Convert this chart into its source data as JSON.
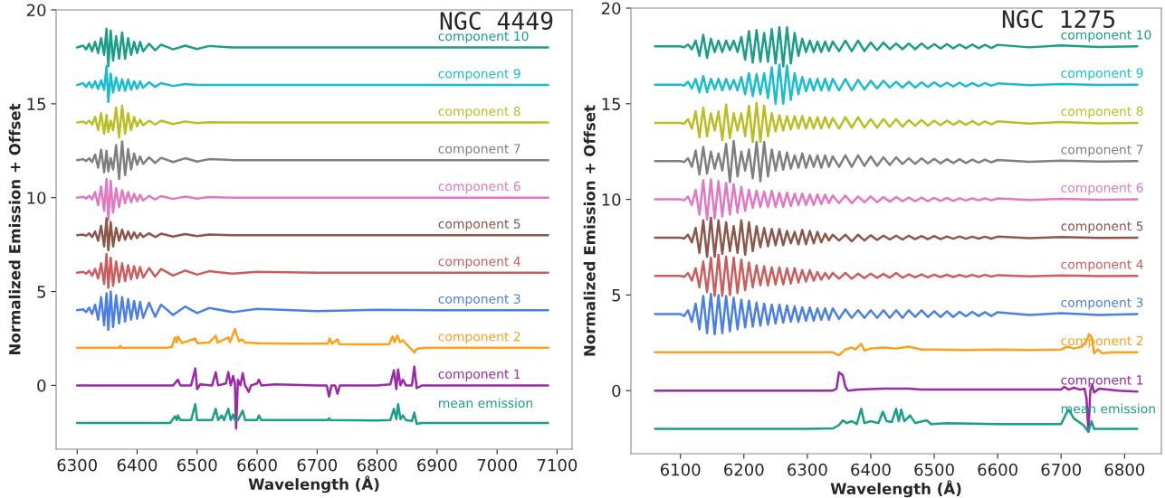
{
  "chart_data": [
    {
      "type": "line",
      "title": "NGC 4449",
      "xlabel": "Wavelength (Å)",
      "ylabel": "Normalized Emission + Offset",
      "xlim": [
        6265,
        7125
      ],
      "ylim": [
        -3.4,
        20
      ],
      "xticks": [
        6300,
        6400,
        6500,
        6600,
        6700,
        6800,
        6900,
        7000,
        7100
      ],
      "yticks": [
        0,
        5,
        10,
        15,
        20
      ],
      "x": [
        6300,
        6310,
        6315,
        6320,
        6325,
        6330,
        6335,
        6340,
        6345,
        6349,
        6352,
        6356,
        6360,
        6365,
        6370,
        6375,
        6380,
        6385,
        6390,
        6395,
        6400,
        6405,
        6410,
        6420,
        6430,
        6440,
        6460,
        6480,
        6500,
        6520,
        6560,
        6600,
        6700,
        6800,
        6900,
        7000,
        7085
      ],
      "series": [
        {
          "name": "component 10",
          "color": "#1a9e8a",
          "values": [
            18,
            18.1,
            17.9,
            18.2,
            17.8,
            18.3,
            17.7,
            18.5,
            17.6,
            19.0,
            17.0,
            18.9,
            17.3,
            18.6,
            17.4,
            18.8,
            17.4,
            18.5,
            17.6,
            18.3,
            17.7,
            18.3,
            17.8,
            18.2,
            17.85,
            18.15,
            17.9,
            18.1,
            17.92,
            18.08,
            18,
            18,
            18,
            18,
            18,
            18,
            18
          ]
        },
        {
          "name": "component 9",
          "color": "#17becf",
          "values": [
            16,
            16.1,
            15.9,
            16.15,
            15.85,
            16.2,
            15.8,
            16.25,
            15.75,
            17.0,
            15.1,
            16.6,
            15.6,
            16.4,
            15.7,
            16.3,
            15.7,
            16.3,
            15.75,
            16.2,
            15.8,
            16.2,
            15.85,
            16.15,
            15.9,
            16.1,
            15.95,
            16.05,
            16,
            16,
            16,
            16,
            16,
            16,
            16,
            16,
            16
          ]
        },
        {
          "name": "component 8",
          "color": "#bcbd22",
          "values": [
            14,
            14.05,
            13.95,
            14.1,
            13.9,
            14.3,
            13.6,
            14.5,
            13.4,
            14.4,
            13.5,
            14.1,
            13.6,
            14.8,
            13.2,
            14.9,
            13.4,
            14.5,
            13.6,
            14.3,
            13.8,
            14.15,
            13.85,
            14.1,
            13.9,
            14.1,
            13.92,
            14.06,
            13.97,
            14.02,
            14,
            14,
            14,
            14,
            14,
            14,
            14
          ]
        },
        {
          "name": "component 7",
          "color": "#7f7f7f",
          "values": [
            12,
            12.05,
            11.95,
            12.1,
            11.9,
            12.3,
            11.6,
            12.55,
            11.35,
            12.5,
            11.4,
            12.1,
            11.5,
            12.8,
            11.0,
            13.0,
            11.2,
            12.6,
            11.5,
            12.35,
            11.75,
            12.2,
            11.8,
            12.15,
            11.85,
            12.12,
            11.9,
            12.1,
            11.92,
            12.05,
            12,
            12,
            12,
            12,
            12,
            12,
            12
          ]
        },
        {
          "name": "component 6",
          "color": "#e377c2",
          "values": [
            10,
            10.05,
            9.95,
            10.1,
            9.9,
            10.3,
            9.6,
            10.6,
            9.3,
            11.0,
            8.8,
            10.9,
            9.2,
            10.5,
            9.5,
            10.4,
            9.7,
            10.3,
            9.75,
            10.2,
            9.8,
            10.15,
            9.85,
            10.1,
            9.9,
            10.08,
            9.93,
            10.06,
            9.95,
            10.03,
            10,
            10,
            10,
            10,
            10,
            10,
            10
          ]
        },
        {
          "name": "component 5",
          "color": "#8c564b",
          "values": [
            8,
            8.03,
            7.97,
            8.1,
            7.9,
            8.2,
            7.7,
            8.5,
            7.4,
            8.9,
            7.2,
            8.7,
            7.4,
            8.4,
            7.7,
            8.3,
            7.75,
            8.2,
            7.8,
            8.15,
            7.85,
            8.1,
            7.9,
            8.1,
            7.9,
            8.08,
            7.93,
            8.06,
            7.95,
            8.03,
            8,
            8,
            8,
            8,
            8,
            8,
            8
          ]
        },
        {
          "name": "component 4",
          "color": "#cd5c5c",
          "values": [
            6,
            6.05,
            5.95,
            6.1,
            5.85,
            6.2,
            5.7,
            6.5,
            5.4,
            7.0,
            5.2,
            6.8,
            5.3,
            6.6,
            5.5,
            6.5,
            5.55,
            6.4,
            5.65,
            6.35,
            5.7,
            6.3,
            5.75,
            6.25,
            5.8,
            6.2,
            5.85,
            6.12,
            5.9,
            6.08,
            5.95,
            6.05,
            6,
            6,
            6,
            6,
            6
          ]
        },
        {
          "name": "component 3",
          "color": "#4a7fe8",
          "values": [
            4,
            4.05,
            3.9,
            4.15,
            3.8,
            4.3,
            3.5,
            4.7,
            3.2,
            4.9,
            2.95,
            5.0,
            3.1,
            4.8,
            3.3,
            4.7,
            3.4,
            4.6,
            3.5,
            4.5,
            3.55,
            4.45,
            3.6,
            4.4,
            3.65,
            4.3,
            3.75,
            4.2,
            3.85,
            4.12,
            3.9,
            4.08,
            3.95,
            4.03,
            4,
            4,
            4
          ]
        },
        {
          "name": "component 2",
          "color": "#ffa01c",
          "x": [
            6300,
            6370,
            6372,
            6374,
            6450,
            6458,
            6463,
            6466,
            6468,
            6475,
            6497,
            6500,
            6520,
            6531,
            6534,
            6552,
            6555,
            6563,
            6566,
            6570,
            6575,
            6580,
            6600,
            6650,
            6700,
            6718,
            6721,
            6725,
            6734,
            6737,
            6780,
            6820,
            6826,
            6829,
            6834,
            6838,
            6843,
            6850,
            6858,
            6862,
            6866,
            6880,
            6950,
            7085
          ],
          "values": [
            2.0,
            2.0,
            2.1,
            2.0,
            2.0,
            2.05,
            2.55,
            2.3,
            2.6,
            2.25,
            2.5,
            2.25,
            2.28,
            2.65,
            2.28,
            2.55,
            2.3,
            3.0,
            2.7,
            2.35,
            2.45,
            2.28,
            2.25,
            2.22,
            2.22,
            2.22,
            2.5,
            2.22,
            2.45,
            2.2,
            2.18,
            2.2,
            2.6,
            2.3,
            2.65,
            2.3,
            2.4,
            2.15,
            1.9,
            1.75,
            1.95,
            2.0,
            2.0,
            2.0
          ]
        },
        {
          "name": "component 1",
          "color": "#9b27a9",
          "x": [
            6300,
            6460,
            6468,
            6472,
            6490,
            6497,
            6500,
            6505,
            6525,
            6531,
            6535,
            6548,
            6552,
            6556,
            6560,
            6563,
            6565,
            6568,
            6572,
            6576,
            6580,
            6586,
            6590,
            6600,
            6603,
            6607,
            6630,
            6700,
            6716,
            6720,
            6724,
            6730,
            6734,
            6738,
            6800,
            6822,
            6828,
            6832,
            6835,
            6839,
            6843,
            6848,
            6858,
            6862,
            6866,
            6875,
            6950,
            7085
          ],
          "values": [
            0,
            0,
            0.3,
            0,
            0,
            0.9,
            -0.2,
            0.05,
            0,
            0.7,
            0,
            0.1,
            0.7,
            0,
            0.5,
            0.1,
            -2.3,
            0.3,
            0,
            0.65,
            0,
            -0.35,
            0,
            0.1,
            0.3,
            0,
            0.05,
            0,
            0,
            -0.6,
            0,
            0,
            -0.45,
            0,
            0,
            0.05,
            0.8,
            -0.2,
            0.85,
            0,
            0.3,
            0,
            0,
            1.0,
            -0.15,
            0,
            0,
            0
          ]
        },
        {
          "name": "mean emission",
          "color": "#1a9e8a",
          "x": [
            6300,
            6455,
            6463,
            6466,
            6468,
            6472,
            6490,
            6497,
            6500,
            6525,
            6531,
            6535,
            6541,
            6545,
            6552,
            6556,
            6560,
            6563,
            6565,
            6568,
            6576,
            6580,
            6600,
            6603,
            6607,
            6650,
            6718,
            6720,
            6722,
            6800,
            6822,
            6828,
            6832,
            6835,
            6839,
            6843,
            6848,
            6858,
            6862,
            6866,
            6875,
            6950,
            7085
          ],
          "values": [
            -2,
            -2,
            -1.65,
            -1.85,
            -1.6,
            -1.85,
            -1.85,
            -1.0,
            -1.85,
            -1.85,
            -1.25,
            -1.85,
            -1.6,
            -1.85,
            -1.25,
            -1.85,
            -1.55,
            -1.85,
            -1.85,
            -1.85,
            -1.35,
            -1.85,
            -1.85,
            -1.6,
            -1.85,
            -1.85,
            -1.85,
            -1.75,
            -1.85,
            -1.87,
            -1.85,
            -1.25,
            -1.8,
            -1.0,
            -1.8,
            -1.6,
            -1.85,
            -1.9,
            -1.45,
            -2.05,
            -2.0,
            -2.0,
            -2.0
          ]
        }
      ]
    },
    {
      "type": "line",
      "title": "NGC 1275",
      "xlabel": "Wavelength (Å)",
      "ylabel": "Normalized Emission + Offset",
      "xlim": [
        6022,
        6858
      ],
      "ylim": [
        -3.3,
        20
      ],
      "xticks": [
        6100,
        6200,
        6300,
        6400,
        6500,
        6600,
        6700,
        6800
      ],
      "yticks": [
        0,
        5,
        10,
        15,
        20
      ],
      "x": [
        6060,
        6100,
        6106,
        6112,
        6118,
        6124,
        6130,
        6136,
        6142,
        6148,
        6154,
        6160,
        6166,
        6172,
        6178,
        6184,
        6190,
        6196,
        6202,
        6208,
        6214,
        6220,
        6226,
        6232,
        6238,
        6244,
        6250,
        6256,
        6262,
        6268,
        6274,
        6280,
        6286,
        6292,
        6298,
        6304,
        6310,
        6316,
        6322,
        6328,
        6334,
        6340,
        6350,
        6360,
        6370,
        6380,
        6390,
        6400,
        6410,
        6420,
        6430,
        6440,
        6450,
        6460,
        6470,
        6480,
        6490,
        6500,
        6510,
        6520,
        6530,
        6540,
        6550,
        6560,
        6570,
        6580,
        6590,
        6600,
        6650,
        6700,
        6760,
        6820
      ],
      "series": [
        {
          "name": "component 10",
          "color": "#1a9e8a",
          "values": [
            18,
            18,
            17.95,
            18.1,
            17.85,
            18.3,
            17.5,
            18.6,
            17.4,
            18.4,
            17.7,
            18.3,
            17.7,
            18.3,
            17.8,
            18.3,
            17.7,
            18.5,
            17.3,
            18.8,
            17.15,
            18.85,
            17.2,
            18.7,
            17.2,
            18.9,
            17.1,
            19.0,
            16.95,
            19.0,
            17.1,
            18.7,
            17.5,
            18.4,
            17.7,
            18.3,
            17.7,
            18.25,
            17.7,
            18.25,
            17.75,
            18.25,
            17.75,
            18.3,
            17.75,
            18.3,
            17.75,
            18.2,
            17.8,
            18.2,
            17.85,
            18.15,
            17.85,
            18.15,
            17.85,
            18.15,
            17.88,
            18.12,
            17.88,
            18.12,
            17.9,
            18.1,
            17.9,
            18.1,
            17.9,
            18.08,
            17.92,
            18.08,
            17.95,
            18.05,
            17.97,
            18.0
          ]
        },
        {
          "name": "component 9",
          "color": "#17becf",
          "values": [
            16,
            16,
            15.95,
            16.15,
            15.8,
            16.3,
            15.6,
            16.45,
            15.6,
            16.3,
            15.75,
            16.3,
            15.7,
            16.3,
            15.75,
            16.25,
            15.7,
            16.4,
            15.5,
            16.6,
            15.4,
            16.55,
            15.5,
            16.6,
            15.3,
            16.9,
            15.0,
            17.05,
            15.0,
            17.0,
            15.2,
            16.6,
            15.5,
            16.4,
            15.65,
            16.3,
            15.7,
            16.3,
            15.7,
            16.3,
            15.7,
            16.3,
            15.7,
            16.3,
            15.7,
            16.25,
            15.75,
            16.2,
            15.8,
            16.2,
            15.85,
            16.15,
            15.85,
            16.15,
            15.85,
            16.12,
            15.88,
            16.12,
            15.9,
            16.1,
            15.9,
            16.1,
            15.9,
            16.08,
            15.92,
            16.08,
            15.94,
            16.06,
            15.97,
            16.03,
            15.98,
            16.0
          ]
        },
        {
          "name": "component 8",
          "color": "#bcbd22",
          "values": [
            14,
            14,
            13.95,
            14.2,
            13.7,
            14.6,
            13.25,
            14.8,
            13.3,
            14.5,
            13.6,
            14.6,
            13.1,
            14.95,
            13.2,
            14.5,
            13.6,
            14.5,
            13.3,
            14.9,
            13.0,
            15.05,
            13.0,
            14.9,
            13.3,
            14.5,
            13.55,
            14.4,
            13.6,
            14.35,
            13.65,
            14.35,
            13.7,
            14.35,
            13.7,
            14.3,
            13.7,
            14.3,
            13.7,
            14.3,
            13.75,
            14.25,
            13.7,
            14.3,
            13.75,
            14.3,
            13.75,
            14.2,
            13.75,
            14.2,
            13.8,
            14.2,
            13.8,
            14.15,
            13.85,
            14.15,
            13.85,
            14.12,
            13.88,
            14.12,
            13.9,
            14.1,
            13.9,
            14.1,
            13.9,
            14.08,
            13.92,
            14.08,
            13.96,
            14.04,
            13.98,
            14.0
          ]
        },
        {
          "name": "component 7",
          "color": "#7f7f7f",
          "values": [
            12,
            12,
            11.95,
            12.15,
            11.7,
            12.55,
            11.3,
            12.75,
            11.35,
            12.5,
            11.6,
            12.4,
            11.5,
            12.9,
            10.9,
            13.05,
            11.2,
            12.5,
            11.5,
            12.6,
            11.1,
            13.0,
            10.95,
            13.0,
            11.2,
            12.6,
            11.5,
            12.5,
            11.55,
            12.45,
            11.6,
            12.3,
            11.65,
            12.4,
            11.65,
            12.3,
            11.7,
            12.3,
            11.65,
            12.3,
            11.7,
            12.25,
            11.7,
            12.3,
            11.7,
            12.3,
            11.75,
            12.25,
            11.75,
            12.2,
            11.8,
            12.2,
            11.85,
            12.15,
            11.85,
            12.15,
            11.88,
            12.12,
            11.88,
            12.1,
            11.9,
            12.1,
            11.9,
            12.08,
            11.92,
            12.08,
            11.94,
            12.06,
            11.97,
            12.03,
            11.98,
            12.0
          ]
        },
        {
          "name": "component 6",
          "color": "#e377c2",
          "values": [
            10,
            10,
            9.95,
            10.15,
            9.7,
            10.5,
            9.2,
            11.0,
            8.95,
            11.05,
            9.0,
            10.95,
            9.1,
            10.85,
            9.2,
            10.8,
            9.3,
            10.65,
            9.4,
            10.5,
            9.55,
            10.45,
            9.6,
            10.4,
            9.6,
            10.45,
            9.6,
            10.35,
            9.6,
            10.35,
            9.65,
            10.3,
            9.7,
            10.3,
            9.7,
            10.25,
            9.7,
            10.25,
            9.75,
            10.25,
            9.8,
            10.2,
            9.8,
            10.2,
            9.8,
            10.15,
            9.85,
            10.15,
            9.85,
            10.12,
            9.88,
            10.12,
            9.9,
            10.1,
            9.9,
            10.1,
            9.9,
            10.08,
            9.92,
            10.08,
            9.92,
            10.06,
            9.94,
            10.06,
            9.95,
            10.05,
            9.95,
            10.05,
            9.97,
            10.03,
            9.98,
            10.0
          ]
        },
        {
          "name": "component 5",
          "color": "#8c564b",
          "values": [
            8,
            8,
            7.95,
            8.15,
            7.75,
            8.5,
            7.2,
            8.9,
            7.0,
            9.05,
            7.0,
            8.9,
            7.15,
            8.8,
            7.3,
            8.6,
            7.2,
            8.9,
            7.1,
            8.8,
            7.3,
            8.6,
            7.5,
            8.5,
            7.55,
            8.45,
            7.6,
            8.45,
            7.6,
            8.35,
            7.7,
            8.3,
            7.65,
            8.4,
            7.65,
            8.35,
            7.7,
            8.3,
            7.75,
            8.2,
            7.85,
            8.15,
            7.85,
            8.15,
            7.8,
            8.15,
            7.85,
            8.12,
            7.88,
            8.1,
            7.9,
            8.1,
            7.9,
            8.1,
            7.92,
            8.08,
            7.92,
            8.08,
            7.92,
            8.06,
            7.94,
            8.06,
            7.94,
            8.05,
            7.95,
            8.05,
            7.95,
            8.05,
            7.97,
            8.03,
            7.98,
            8.0
          ]
        },
        {
          "name": "component 4",
          "color": "#cd5c5c",
          "values": [
            6,
            6,
            5.95,
            6.15,
            5.75,
            6.4,
            5.4,
            6.75,
            5.15,
            6.95,
            4.95,
            7.1,
            4.95,
            7.0,
            5.0,
            6.95,
            5.1,
            6.85,
            5.25,
            6.7,
            5.4,
            6.55,
            5.5,
            6.5,
            5.5,
            6.45,
            5.55,
            6.45,
            5.55,
            6.4,
            5.6,
            6.4,
            5.65,
            6.3,
            5.7,
            6.3,
            5.75,
            6.2,
            5.8,
            6.15,
            5.85,
            6.15,
            5.85,
            6.15,
            5.85,
            6.12,
            5.88,
            6.12,
            5.9,
            6.1,
            5.9,
            6.15,
            5.9,
            6.08,
            5.92,
            6.08,
            5.92,
            6.06,
            5.94,
            6.06,
            5.94,
            6.05,
            5.95,
            6.05,
            5.95,
            6.05,
            5.96,
            6.04,
            5.98,
            6.02,
            5.99,
            6.0
          ]
        },
        {
          "name": "component 3",
          "color": "#4a7fe8",
          "values": [
            4,
            4,
            3.9,
            4.2,
            3.6,
            4.55,
            3.2,
            4.95,
            3.0,
            5.05,
            2.95,
            5.0,
            3.0,
            4.95,
            3.1,
            4.85,
            3.2,
            4.75,
            3.3,
            4.7,
            3.35,
            4.6,
            3.4,
            4.55,
            3.45,
            4.5,
            3.5,
            4.5,
            3.55,
            4.45,
            3.6,
            4.4,
            3.6,
            4.35,
            3.65,
            4.35,
            3.65,
            4.3,
            3.7,
            4.3,
            3.7,
            4.3,
            3.75,
            4.25,
            3.8,
            4.2,
            3.8,
            4.2,
            3.8,
            4.2,
            3.8,
            4.2,
            3.8,
            4.2,
            3.85,
            4.2,
            3.85,
            4.15,
            3.85,
            4.15,
            3.85,
            4.12,
            3.88,
            4.12,
            3.9,
            4.1,
            3.9,
            4.1,
            3.95,
            4.05,
            3.95,
            4.0
          ]
        },
        {
          "name": "component 2",
          "color": "#ffa01c",
          "x": [
            6060,
            6200,
            6340,
            6350,
            6360,
            6370,
            6376,
            6385,
            6390,
            6400,
            6420,
            6440,
            6460,
            6480,
            6500,
            6550,
            6600,
            6650,
            6700,
            6710,
            6720,
            6733,
            6740,
            6744,
            6748,
            6752,
            6758,
            6765,
            6780,
            6820
          ],
          "values": [
            2.0,
            2.0,
            2.0,
            1.85,
            2.15,
            2.25,
            2.15,
            2.45,
            2.1,
            2.2,
            2.25,
            2.2,
            2.3,
            2.15,
            2.15,
            2.12,
            2.15,
            2.12,
            2.15,
            2.3,
            2.2,
            2.3,
            2.6,
            2.95,
            2.8,
            1.95,
            2.15,
            1.95,
            2.0,
            2.0
          ]
        },
        {
          "name": "component 1",
          "color": "#9b27a9",
          "x": [
            6060,
            6340,
            6346,
            6350,
            6356,
            6360,
            6364,
            6380,
            6420,
            6440,
            6460,
            6480,
            6550,
            6700,
            6705,
            6712,
            6720,
            6730,
            6737,
            6740,
            6743,
            6746,
            6749,
            6752,
            6760,
            6790,
            6820
          ],
          "values": [
            0,
            0,
            0.1,
            0.95,
            0.8,
            0.2,
            0,
            0.05,
            0.1,
            0.1,
            0.1,
            0.05,
            0.05,
            0.05,
            0.2,
            0.05,
            0.15,
            0.05,
            0.1,
            -0.4,
            -2.15,
            0.0,
            0.3,
            -0.1,
            0.1,
            0,
            -0.05
          ]
        },
        {
          "name": "mean emission",
          "color": "#1a9e8a",
          "x": [
            6060,
            6300,
            6340,
            6350,
            6356,
            6362,
            6370,
            6378,
            6385,
            6390,
            6400,
            6412,
            6419,
            6425,
            6433,
            6440,
            6444,
            6448,
            6453,
            6462,
            6470,
            6488,
            6495,
            6520,
            6600,
            6700,
            6708,
            6712,
            6720,
            6735,
            6743,
            6748,
            6752,
            6820
          ],
          "values": [
            -2,
            -2,
            -1.98,
            -1.8,
            -1.55,
            -1.7,
            -1.6,
            -1.75,
            -0.95,
            -1.7,
            -1.6,
            -1.7,
            -1.1,
            -1.6,
            -1.65,
            -0.95,
            -1.6,
            -1.0,
            -1.6,
            -1.3,
            -1.7,
            -1.55,
            -1.75,
            -1.7,
            -1.75,
            -1.75,
            -1.2,
            -1.0,
            -1.45,
            -1.8,
            -2.15,
            -1.6,
            -2.0,
            -2.0
          ]
        }
      ]
    }
  ]
}
